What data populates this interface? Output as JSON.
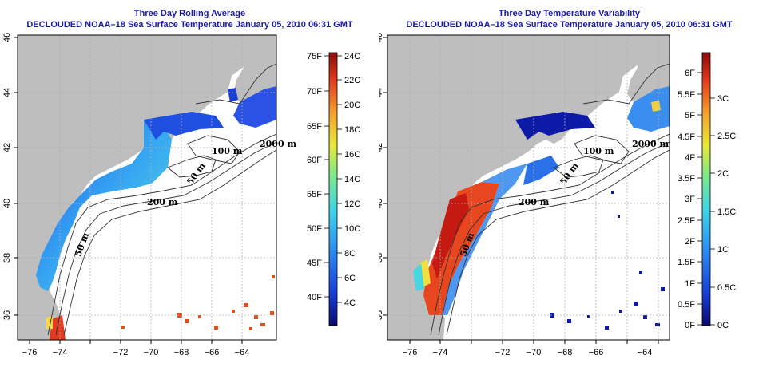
{
  "left_panel": {
    "title": "Three Day Rolling Average",
    "subtitle": "DECLOUDED NOAA–18 Sea Surface Temperature January 05, 2010 06:31 GMT",
    "colorbar_f": [
      "75F",
      "70F",
      "65F",
      "60F",
      "55F",
      "50F",
      "45F",
      "40F"
    ],
    "colorbar_c": [
      "24C",
      "22C",
      "20C",
      "18C",
      "16C",
      "14C",
      "12C",
      "10C",
      "8C",
      "6C",
      "4C"
    ]
  },
  "right_panel": {
    "title": "Three Day Temperature Variability",
    "subtitle": "DECLOUDED NOAA–18 Sea Surface Temperature January 05, 2010 06:31 GMT",
    "colorbar_f": [
      "6F",
      "5.5F",
      "5F",
      "4.5F",
      "4F",
      "3.5F",
      "3F",
      "2.5F",
      "2F",
      "1.5F",
      "1F",
      "0.5F",
      "0F"
    ],
    "colorbar_c": [
      "3C",
      "2.5C",
      "2C",
      "1.5C",
      "1C",
      "0.5C",
      "0C"
    ]
  },
  "axes": {
    "x_ticks": [
      "−76",
      "−74",
      "−72",
      "−70",
      "−68",
      "−66",
      "−64"
    ],
    "y_ticks": [
      "36",
      "38",
      "40",
      "42",
      "44",
      "46"
    ]
  },
  "contour_labels": [
    "2000 m",
    "100 m",
    "50 m",
    "200 m",
    "50 m"
  ],
  "colors": {
    "title": "#1a1aa6",
    "land": "#bebebe",
    "ocean": "#ffffff",
    "grid": "#b0b0b0",
    "contour": "#303030"
  }
}
